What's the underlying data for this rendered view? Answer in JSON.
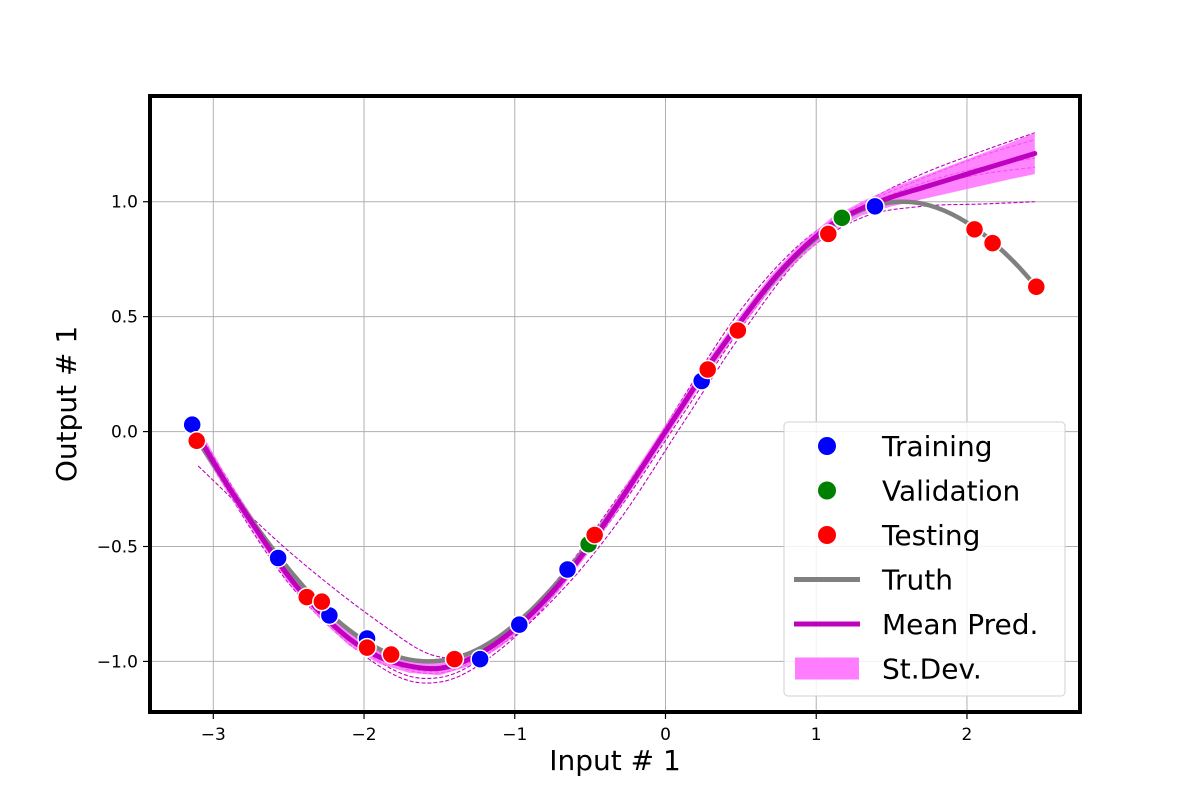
{
  "chart_data": {
    "type": "scatter",
    "xlabel": "Input # 1",
    "ylabel": "Output # 1",
    "xlim": [
      -3.42,
      2.75
    ],
    "ylim": [
      -1.22,
      1.46
    ],
    "xticks": [
      -3,
      -2,
      -1,
      0,
      1,
      2
    ],
    "yticks": [
      -1.0,
      -0.5,
      0.0,
      0.5,
      1.0
    ],
    "xtick_labels": [
      "−3",
      "−2",
      "−1",
      "0",
      "1",
      "2"
    ],
    "ytick_labels": [
      "−1.0",
      "−0.5",
      "0.0",
      "0.5",
      "1.0"
    ],
    "grid": true,
    "legend_position": "lower-right",
    "colors": {
      "training": "#0000ff",
      "validation": "#008000",
      "testing": "#ff0000",
      "truth": "#808080",
      "mean": "#bf00bf",
      "std": "#ff66ff",
      "ensemble": "#bf00bf"
    },
    "legend": [
      {
        "key": "training",
        "label": "Training",
        "kind": "marker"
      },
      {
        "key": "validation",
        "label": "Validation",
        "kind": "marker"
      },
      {
        "key": "testing",
        "label": "Testing",
        "kind": "marker"
      },
      {
        "key": "truth",
        "label": "Truth",
        "kind": "line"
      },
      {
        "key": "mean",
        "label": "Mean Pred.",
        "kind": "line"
      },
      {
        "key": "std",
        "label": "St.Dev.",
        "kind": "patch"
      }
    ],
    "training": {
      "x": [
        -3.14,
        -2.57,
        -2.23,
        -1.98,
        -1.23,
        -0.97,
        -0.65,
        0.24,
        1.39
      ],
      "y": [
        0.03,
        -0.55,
        -0.8,
        -0.9,
        -0.99,
        -0.84,
        -0.6,
        0.22,
        0.98
      ]
    },
    "validation": {
      "x": [
        -0.51,
        1.17
      ],
      "y": [
        -0.49,
        0.93
      ]
    },
    "testing": {
      "x": [
        -3.11,
        -2.38,
        -2.28,
        -1.98,
        -1.82,
        -1.4,
        -0.47,
        0.28,
        0.48,
        1.08,
        2.05,
        2.17,
        2.46
      ],
      "y": [
        -0.04,
        -0.72,
        -0.74,
        -0.94,
        -0.97,
        -0.99,
        -0.45,
        0.27,
        0.44,
        0.86,
        0.88,
        0.82,
        0.63
      ]
    },
    "truth": {
      "x": [
        -3.1,
        -2.9,
        -2.7,
        -2.5,
        -2.3,
        -2.1,
        -1.9,
        -1.7,
        -1.5,
        -1.3,
        -1.1,
        -0.9,
        -0.7,
        -0.5,
        -0.3,
        -0.1,
        0.1,
        0.3,
        0.5,
        0.7,
        0.9,
        1.1,
        1.3,
        1.5,
        1.7,
        1.9,
        2.1,
        2.3,
        2.45
      ],
      "y": [
        -0.042,
        -0.239,
        -0.427,
        -0.598,
        -0.746,
        -0.863,
        -0.946,
        -0.992,
        -0.997,
        -0.964,
        -0.891,
        -0.783,
        -0.644,
        -0.479,
        -0.296,
        -0.1,
        0.1,
        0.296,
        0.479,
        0.644,
        0.783,
        0.891,
        0.964,
        0.997,
        0.992,
        0.946,
        0.863,
        0.746,
        0.638
      ]
    },
    "mean_prediction": {
      "x": [
        -3.1,
        -2.9,
        -2.7,
        -2.5,
        -2.3,
        -2.1,
        -1.9,
        -1.7,
        -1.5,
        -1.3,
        -1.1,
        -0.9,
        -0.7,
        -0.5,
        -0.3,
        -0.1,
        0.1,
        0.3,
        0.5,
        0.7,
        0.9,
        1.1,
        1.3,
        1.5,
        1.7,
        1.9,
        2.1,
        2.3,
        2.45
      ],
      "y": [
        -0.02,
        -0.24,
        -0.44,
        -0.63,
        -0.78,
        -0.9,
        -0.98,
        -1.02,
        -1.03,
        -0.99,
        -0.91,
        -0.8,
        -0.66,
        -0.49,
        -0.3,
        -0.1,
        0.1,
        0.3,
        0.48,
        0.65,
        0.79,
        0.9,
        0.97,
        1.02,
        1.06,
        1.1,
        1.14,
        1.18,
        1.21
      ]
    },
    "std_band": {
      "lower": [
        -0.06,
        -0.27,
        -0.47,
        -0.66,
        -0.81,
        -0.93,
        -1.01,
        -1.05,
        -1.06,
        -1.02,
        -0.94,
        -0.83,
        -0.69,
        -0.52,
        -0.33,
        -0.13,
        0.07,
        0.27,
        0.45,
        0.62,
        0.76,
        0.87,
        0.94,
        0.98,
        1.01,
        1.04,
        1.07,
        1.1,
        1.12
      ],
      "upper": [
        0.02,
        -0.21,
        -0.41,
        -0.6,
        -0.75,
        -0.87,
        -0.95,
        -0.99,
        -1.0,
        -0.96,
        -0.88,
        -0.77,
        -0.63,
        -0.46,
        -0.27,
        -0.07,
        0.13,
        0.33,
        0.51,
        0.68,
        0.82,
        0.93,
        1.0,
        1.06,
        1.11,
        1.16,
        1.21,
        1.26,
        1.3
      ]
    },
    "ensemble_members": [
      {
        "x": [
          -3.1,
          -2.5,
          -1.9,
          -1.5,
          -1.1,
          -0.7,
          -0.3,
          0.1,
          0.5,
          0.9,
          1.3,
          1.7,
          2.1,
          2.45
        ],
        "y": [
          -0.15,
          -0.52,
          -0.83,
          -0.98,
          -0.93,
          -0.7,
          -0.38,
          0.02,
          0.42,
          0.76,
          0.93,
          0.98,
          0.99,
          1.0
        ]
      },
      {
        "x": [
          -3.1,
          -2.5,
          -1.9,
          -1.5,
          -1.1,
          -0.7,
          -0.3,
          0.1,
          0.5,
          0.9,
          1.3,
          1.7,
          2.1,
          2.45
        ],
        "y": [
          -0.05,
          -0.66,
          -1.02,
          -1.09,
          -0.95,
          -0.68,
          -0.3,
          0.13,
          0.53,
          0.82,
          0.99,
          1.12,
          1.22,
          1.3
        ]
      },
      {
        "x": [
          -3.1,
          -2.5,
          -1.9,
          -1.5,
          -1.1,
          -0.7,
          -0.3,
          0.1,
          0.5,
          0.9,
          1.3,
          1.7,
          2.1,
          2.45
        ],
        "y": [
          0.0,
          -0.6,
          -0.96,
          -1.04,
          -0.9,
          -0.63,
          -0.27,
          0.1,
          0.47,
          0.78,
          0.96,
          1.06,
          1.12,
          1.15
        ]
      },
      {
        "x": [
          -3.1,
          -2.5,
          -1.9,
          -1.5,
          -1.1,
          -0.7,
          -0.3,
          0.1,
          0.5,
          0.9,
          1.3,
          1.7,
          2.1,
          2.45
        ],
        "y": [
          -0.03,
          -0.64,
          -1.0,
          -1.07,
          -0.93,
          -0.67,
          -0.33,
          0.06,
          0.45,
          0.78,
          0.98,
          1.1,
          1.2,
          1.27
        ]
      },
      {
        "x": [
          -3.1,
          -2.5,
          -1.9,
          -1.5,
          -1.1,
          -0.7,
          -0.3,
          0.1,
          0.5,
          0.9,
          1.3,
          1.7,
          2.1,
          2.45
        ],
        "y": [
          -0.01,
          -0.61,
          -0.97,
          -1.05,
          -0.92,
          -0.65,
          -0.28,
          0.11,
          0.49,
          0.8,
          0.97,
          1.08,
          1.15,
          1.19
        ]
      }
    ]
  }
}
